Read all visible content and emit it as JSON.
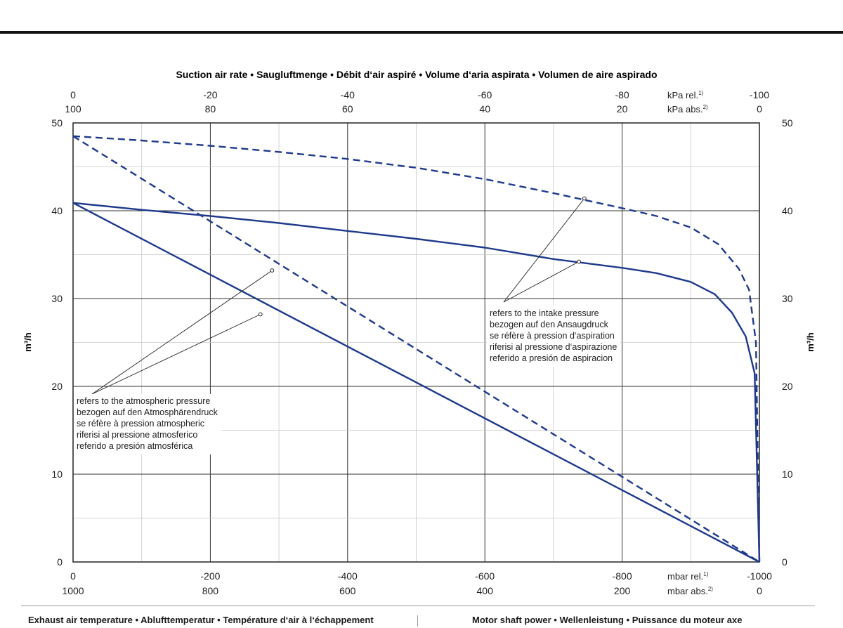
{
  "chart_data": {
    "type": "line",
    "title": "Suction air rate  •  Saugluftmenge  •  Débit d‘air aspiré  •  Volume d‘aria aspirata  •  Volumen de aire aspirado",
    "ylabel": "m³/h",
    "ylim": [
      0,
      50
    ],
    "y_ticks": [
      "0",
      "10",
      "20",
      "30",
      "40",
      "50"
    ],
    "xlim_mbar_rel": [
      0,
      -1000
    ],
    "x_bottom_rel_ticks": [
      "0",
      "-200",
      "-400",
      "-600",
      "-800",
      "-1000"
    ],
    "x_bottom_abs_ticks": [
      "1000",
      "800",
      "600",
      "400",
      "200",
      "0"
    ],
    "x_bottom_rel_unit": "mbar rel.",
    "x_bottom_rel_sup": "1)",
    "x_bottom_abs_unit": "mbar abs.",
    "x_bottom_abs_sup": "2)",
    "x_top_rel_ticks": [
      "0",
      "-20",
      "-40",
      "-60",
      "-80",
      "-100"
    ],
    "x_top_abs_ticks": [
      "100",
      "80",
      "60",
      "40",
      "20",
      "0"
    ],
    "x_top_rel_unit": "kPa rel.",
    "x_top_rel_sup": "1)",
    "x_top_abs_unit": "kPa abs.",
    "x_top_abs_sup": "2)",
    "grid": true,
    "line_color": "#1f3a8c",
    "series": [
      {
        "style": "dashed",
        "x": [
          0,
          -100,
          -200,
          -300,
          -400,
          -500,
          -600,
          -700,
          -800,
          -850,
          -900,
          -940,
          -970,
          -985,
          -995,
          -1000
        ],
        "y": [
          48.5,
          48.0,
          47.4,
          46.7,
          45.9,
          44.9,
          43.6,
          42.0,
          40.3,
          39.4,
          38.1,
          36.2,
          33.4,
          31.0,
          25.0,
          0
        ]
      },
      {
        "style": "solid",
        "x": [
          0,
          -100,
          -200,
          -300,
          -400,
          -500,
          -600,
          -700,
          -800,
          -850,
          -900,
          -935,
          -960,
          -980,
          -993,
          -1000
        ],
        "y": [
          40.9,
          40.1,
          39.4,
          38.6,
          37.7,
          36.8,
          35.8,
          34.5,
          33.5,
          32.9,
          31.9,
          30.5,
          28.4,
          25.7,
          21.5,
          0
        ]
      },
      {
        "style": "dashed",
        "x": [
          0,
          -1000
        ],
        "y": [
          48.5,
          0
        ]
      },
      {
        "style": "solid",
        "x": [
          0,
          -1000
        ],
        "y": [
          40.9,
          0
        ]
      }
    ],
    "annotations": [
      {
        "lines": [
          "refers to the intake pressure",
          "bezogen auf den Ansaugdruck",
          "se réfère à pression d‘aspiration",
          "riferisi al pressione d‘aspirazione",
          "referido a presión de aspiracion"
        ],
        "targets": [
          {
            "x": -745,
            "y": 41.4
          },
          {
            "x": -737,
            "y": 34.2
          }
        ]
      },
      {
        "lines": [
          "refers to the atmospheric pressure",
          "bezogen auf den Atmosphärendruck",
          "se réfère à pression atmospheric",
          "riferisi al pressione atmosferico",
          "referido a presión atmosférica"
        ],
        "targets": [
          {
            "x": -290,
            "y": 33.2
          },
          {
            "x": -273,
            "y": 28.2
          }
        ]
      }
    ]
  },
  "footer": {
    "left": "Exhaust air temperature  •  Ablufttemperatur  •  Température d‘air à l‘échappement",
    "right": "Motor shaft power  •  Wellenleistung  •  Puissance du moteur axe"
  }
}
